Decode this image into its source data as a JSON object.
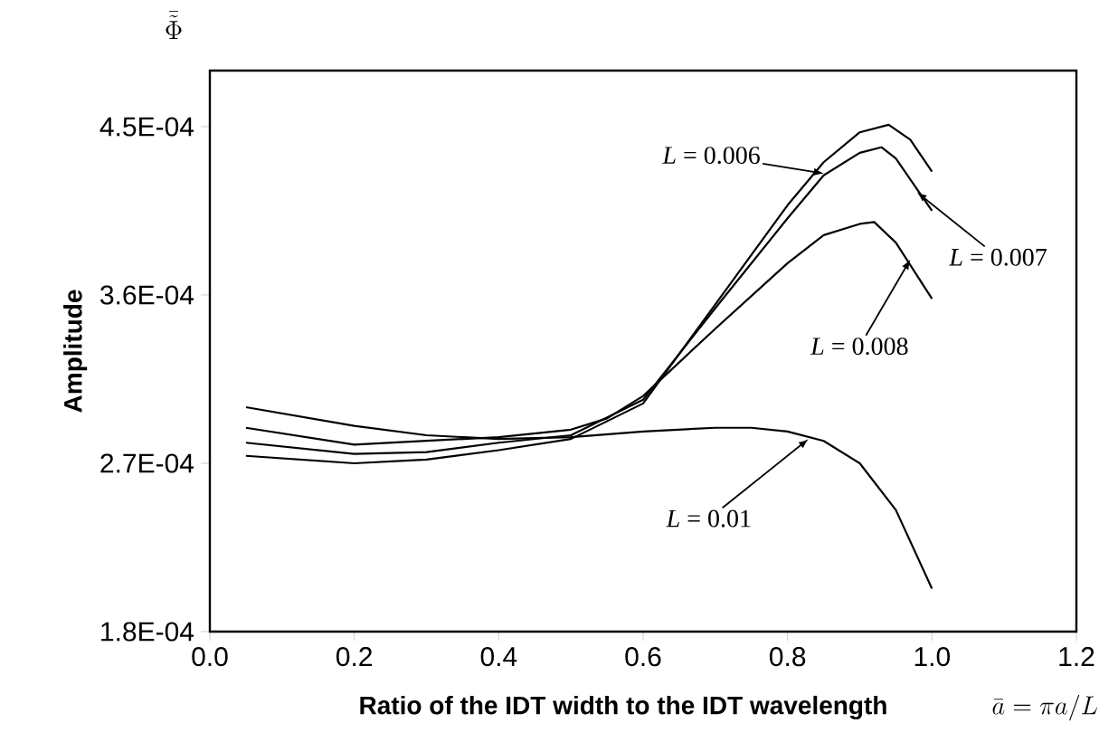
{
  "chart_data": {
    "type": "line",
    "ylabel": "Amplitude",
    "xlabel": "Ratio of the IDT width to the IDT wavelength",
    "xlim": [
      0,
      1.2
    ],
    "ylim": [
      0.00018,
      0.00048
    ],
    "xticks": [
      {
        "value": 0,
        "label": "0.0"
      },
      0.2,
      0.4,
      0.6,
      0.8,
      {
        "value": 1,
        "label": "1.0"
      },
      1.2
    ],
    "yticks": [
      {
        "value": 0.00018,
        "label": "1.8E-04"
      },
      {
        "value": 0.00027,
        "label": "2.7E-04"
      },
      {
        "value": 0.00036,
        "label": "3.6E-04"
      },
      {
        "value": 0.00045,
        "label": "4.5E-04"
      }
    ],
    "series": [
      {
        "color": "#000000",
        "x": [
          0.05,
          0.2,
          0.3,
          0.4,
          0.5,
          0.6,
          0.7,
          0.75,
          0.8,
          0.85,
          0.9,
          0.95,
          1.0
        ],
        "values": [
          0.0003,
          0.00029,
          0.000285,
          0.000283,
          0.000284,
          0.000287,
          0.000289,
          0.000289,
          0.000287,
          0.000282,
          0.00027,
          0.000245,
          0.000203
        ]
      },
      {
        "color": "#000000",
        "x": [
          0.05,
          0.2,
          0.3,
          0.4,
          0.5,
          0.55,
          0.6,
          0.7,
          0.8,
          0.85,
          0.9,
          0.92,
          0.95,
          1.0
        ],
        "values": [
          0.000289,
          0.00028,
          0.000282,
          0.000284,
          0.000288,
          0.000294,
          0.000306,
          0.000342,
          0.000377,
          0.000392,
          0.000398,
          0.000399,
          0.000388,
          0.000358
        ]
      },
      {
        "color": "#000000",
        "x": [
          0.05,
          0.2,
          0.3,
          0.4,
          0.5,
          0.6,
          0.7,
          0.8,
          0.85,
          0.9,
          0.93,
          0.95,
          1.0
        ],
        "values": [
          0.000281,
          0.000275,
          0.000276,
          0.000281,
          0.000285,
          0.000304,
          0.000353,
          0.000401,
          0.000424,
          0.000436,
          0.000439,
          0.000433,
          0.000405
        ]
      },
      {
        "color": "#000000",
        "x": [
          0.05,
          0.2,
          0.3,
          0.4,
          0.5,
          0.6,
          0.7,
          0.8,
          0.85,
          0.9,
          0.94,
          0.97,
          1.0
        ],
        "values": [
          0.000274,
          0.00027,
          0.000272,
          0.000277,
          0.000283,
          0.000302,
          0.000355,
          0.000408,
          0.000431,
          0.000447,
          0.000451,
          0.000443,
          0.000426
        ]
      }
    ],
    "annotations": [
      {
        "text": "*L* = 0.006",
        "x": 0.85,
        "y": 0.000425
      },
      {
        "text": "*L* = 0.007",
        "x": 0.979,
        "y": 0.000415
      },
      {
        "text": "*L* = 0.008",
        "x": 0.97,
        "y": 0.000379
      },
      {
        "text": "*L* = 0.01",
        "x": 0.829,
        "y": 0.000283
      },
      "\\bar{\\tilde{\\Phi}}",
      "\\bar{a} = \\pi a / L"
    ]
  }
}
